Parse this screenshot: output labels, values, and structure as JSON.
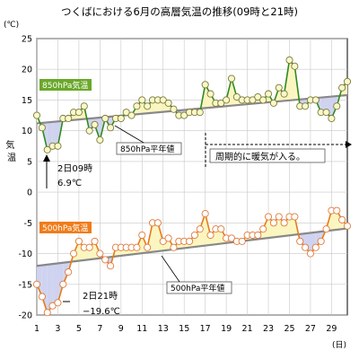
{
  "chart_data": {
    "type": "line",
    "title": "つくばにおける6月の高層気温の推移(09時と21時)",
    "ylabel": "気温",
    "yunit": "(℃)",
    "xunit": "(日)",
    "ylim": [
      -20,
      25
    ],
    "xlim": [
      1,
      30.5
    ],
    "yticks": [
      25,
      20,
      15,
      10,
      5,
      0,
      -5,
      -10,
      -15,
      -20
    ],
    "xticks": [
      1,
      3,
      5,
      7,
      9,
      11,
      13,
      15,
      17,
      19,
      21,
      23,
      25,
      27,
      29
    ],
    "grid": true,
    "series": [
      {
        "name": "850hPa気温",
        "color": "#2e8b20",
        "area_above_color": "#fbf6c0",
        "area_below_color": "#cfd3f0",
        "x": [
          1,
          1.5,
          2,
          2.5,
          3,
          3.5,
          4,
          4.5,
          5,
          5.5,
          6,
          6.5,
          7,
          7.5,
          8,
          8.5,
          9,
          9.5,
          10,
          10.5,
          11,
          11.5,
          12,
          12.5,
          13,
          13.5,
          14,
          14.5,
          15,
          15.5,
          16,
          16.5,
          17,
          17.5,
          18,
          18.5,
          19,
          19.5,
          20,
          20.5,
          21,
          21.5,
          22,
          22.5,
          23,
          23.5,
          24,
          24.5,
          25,
          25.5,
          26,
          26.5,
          27,
          27.5,
          28,
          28.5,
          29,
          29.5,
          30,
          30.5
        ],
        "values": [
          12.5,
          10.5,
          6.9,
          7.5,
          7.5,
          12,
          12,
          13,
          13,
          14,
          10,
          11,
          8.5,
          12,
          10.5,
          12,
          12,
          13,
          12.5,
          14,
          15,
          14,
          15,
          15,
          15,
          14.5,
          13.5,
          12.5,
          12.5,
          13,
          13,
          13,
          17.5,
          16,
          14.5,
          14.5,
          15,
          18.5,
          15.5,
          15,
          15,
          15,
          15.5,
          15,
          16,
          14.5,
          17,
          16,
          21.5,
          20.5,
          14,
          14,
          15,
          15,
          13,
          13,
          12,
          14,
          17,
          18
        ]
      },
      {
        "name": "850hPa平年値",
        "color": "#888888",
        "x": [
          1,
          30.5
        ],
        "values": [
          11.2,
          15.8
        ]
      },
      {
        "name": "500hPa気温",
        "color": "#e87a1a",
        "area_above_color": "#fbf6c0",
        "area_below_color": "#cfd3f0",
        "x": [
          1,
          1.5,
          2,
          2.5,
          3,
          3.5,
          4,
          4.5,
          5,
          5.5,
          6,
          6.5,
          7,
          7.5,
          8,
          8.5,
          9,
          9.5,
          10,
          10.5,
          11,
          11.5,
          12,
          12.5,
          13,
          13.5,
          14,
          14.5,
          15,
          15.5,
          16,
          16.5,
          17,
          17.5,
          18,
          18.5,
          19,
          19.5,
          20,
          20.5,
          21,
          21.5,
          22,
          22.5,
          23,
          23.5,
          24,
          24.5,
          25,
          25.5,
          26,
          26.5,
          27,
          27.5,
          28,
          28.5,
          29,
          29.5,
          30,
          30.5
        ],
        "values": [
          -15,
          -17,
          -19.6,
          -18.5,
          -18,
          -15,
          -13,
          -10,
          -8,
          -9,
          -9,
          -8,
          -10,
          -11,
          -12,
          -9,
          -9,
          -9,
          -9,
          -9,
          -7,
          -9,
          -5,
          -5,
          -8,
          -7.5,
          -9,
          -8,
          -8,
          -8,
          -7,
          -6,
          -3.5,
          -7,
          -6,
          -6,
          -7.5,
          -7.5,
          -8,
          -8,
          -7,
          -7,
          -7,
          -6,
          -4,
          -5,
          -4,
          -5,
          -4,
          -4,
          -8,
          -9,
          -10,
          -9,
          -8,
          -6,
          -3,
          -3,
          -4.5,
          -5.5
        ]
      },
      {
        "name": "500hPa平年値",
        "color": "#888888",
        "x": [
          1,
          30.5
        ],
        "values": [
          -12,
          -5.9
        ]
      }
    ],
    "annotations": [
      {
        "text_line1": "2日09時",
        "text_line2": "6.9℃"
      },
      {
        "text_line1": "2日21時",
        "text_line2": "−"
      },
      {
        "text": "周期的に暖気が入る。",
        "from_day": 17
      }
    ],
    "annotation_values": {
      "low850": "6.9℃",
      "low500": "−19.6℃"
    }
  }
}
